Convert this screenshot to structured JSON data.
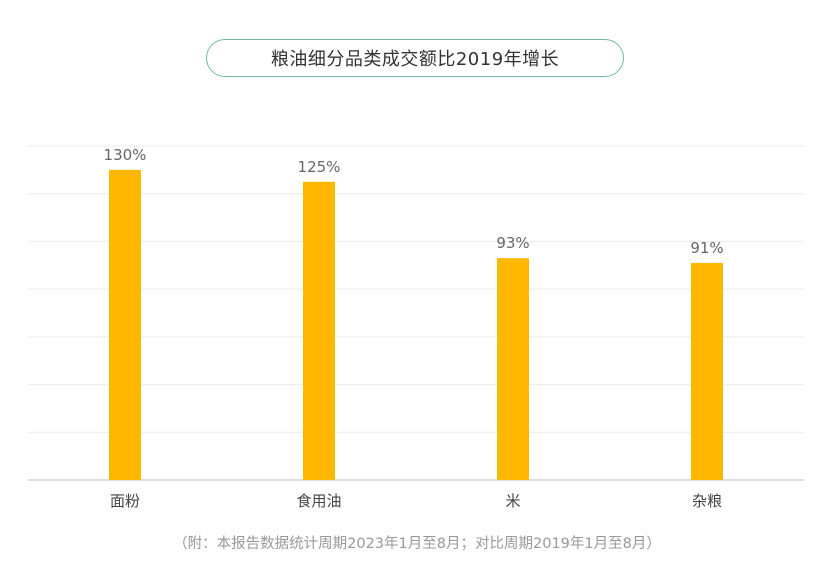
{
  "title": "粮油细分品类成交额比2019年增长",
  "footnote": "（附：本报告数据统计周期2023年1月至8月；对比周期2019年1月至8月）",
  "colors": {
    "bar": "#FFB800",
    "grid": "#ececec",
    "axis": "#bbbbbb",
    "label": "#666666",
    "title_border": "#74b9a3"
  },
  "chart_data": {
    "type": "bar",
    "title": "粮油细分品类成交额比2019年增长",
    "xlabel": "",
    "ylabel": "",
    "categories": [
      "面粉",
      "食用油",
      "米",
      "杂粮"
    ],
    "values": [
      130,
      125,
      93,
      91
    ],
    "value_labels": [
      "130%",
      "125%",
      "93%",
      "91%"
    ],
    "unit": "%",
    "ylim": [
      0,
      140
    ],
    "grid": true,
    "legend": "none"
  }
}
